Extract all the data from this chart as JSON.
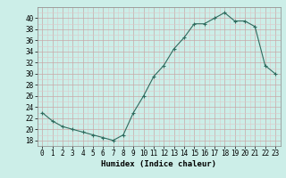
{
  "x": [
    0,
    1,
    2,
    3,
    4,
    5,
    6,
    7,
    8,
    9,
    10,
    11,
    12,
    13,
    14,
    15,
    16,
    17,
    18,
    19,
    20,
    21,
    22,
    23
  ],
  "y": [
    23,
    21.5,
    20.5,
    20,
    19.5,
    19,
    18.5,
    18,
    19,
    23,
    26,
    29.5,
    31.5,
    34.5,
    36.5,
    39,
    39,
    40,
    41,
    39.5,
    39.5,
    38.5,
    31.5,
    30
  ],
  "xlabel": "Humidex (Indice chaleur)",
  "xlim": [
    -0.5,
    23.5
  ],
  "ylim": [
    17,
    42
  ],
  "yticks": [
    18,
    20,
    22,
    24,
    26,
    28,
    30,
    32,
    34,
    36,
    38,
    40
  ],
  "xticks": [
    0,
    1,
    2,
    3,
    4,
    5,
    6,
    7,
    8,
    9,
    10,
    11,
    12,
    13,
    14,
    15,
    16,
    17,
    18,
    19,
    20,
    21,
    22,
    23
  ],
  "line_color": "#2e6b5e",
  "marker": "+",
  "bg_color": "#cceee8",
  "grid_major_color": "#c8a8a8",
  "grid_minor_color": "#ddc8c8",
  "label_fontsize": 6.5,
  "tick_fontsize": 5.5
}
